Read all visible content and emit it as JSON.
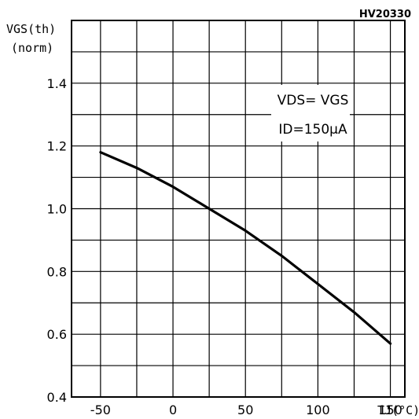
{
  "chart_data": {
    "type": "line",
    "title": "",
    "figure_code": "HV20330",
    "ylabel_lines": [
      "VGS(th)",
      "(norm)"
    ],
    "xlabel": "TJ(°C)",
    "xlim": [
      -70,
      160
    ],
    "ylim": [
      0.4,
      1.6
    ],
    "x_ticks": [
      -50,
      0,
      50,
      100,
      150
    ],
    "x_tick_labels": [
      "-50",
      "0",
      "50",
      "100",
      "150"
    ],
    "y_ticks": [
      0.4,
      0.6,
      0.8,
      1.0,
      1.2,
      1.4
    ],
    "y_tick_labels": [
      "0.4",
      "0.6",
      "0.8",
      "1.0",
      "1.2",
      "1.4"
    ],
    "grid": true,
    "annotation": [
      "VDS= VGS",
      "ID=150µA"
    ],
    "series": [
      {
        "color": "#000000",
        "x": [
          -50,
          -25,
          0,
          25,
          50,
          75,
          100,
          125,
          150
        ],
        "y": [
          1.18,
          1.13,
          1.07,
          1.0,
          0.93,
          0.85,
          0.76,
          0.67,
          0.57
        ]
      }
    ]
  }
}
